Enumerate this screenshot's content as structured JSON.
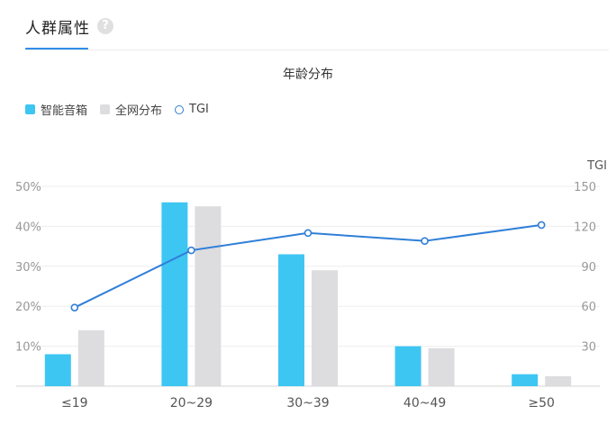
{
  "tab": {
    "title": "人群属性",
    "help_icon": "question-mark-icon",
    "help_glyph": "?"
  },
  "colors": {
    "smart_speaker": "#3ec6f3",
    "whole_network": "#dddcdf",
    "tgi": "#2f7fd8",
    "accent": "#2f8ee8"
  },
  "chart_data": {
    "type": "bar",
    "title": "年龄分布",
    "categories": [
      "≤19",
      "20~29",
      "30~39",
      "40~49",
      "≥50"
    ],
    "series": [
      {
        "name": "智能音箱",
        "kind": "bar",
        "axis": "left",
        "values": [
          8,
          46,
          33,
          10,
          3
        ]
      },
      {
        "name": "全网分布",
        "kind": "bar",
        "axis": "left",
        "values": [
          14,
          45,
          29,
          9.5,
          2.5
        ]
      },
      {
        "name": "TGI",
        "kind": "line",
        "axis": "right",
        "values": [
          59,
          102,
          115,
          109,
          121
        ]
      }
    ],
    "y_left": {
      "ticks": [
        "10%",
        "20%",
        "30%",
        "40%",
        "50%"
      ],
      "tick_values": [
        10,
        20,
        30,
        40,
        50
      ],
      "range": [
        0,
        50
      ]
    },
    "y_right": {
      "label": "TGI",
      "ticks": [
        "30",
        "60",
        "90",
        "120",
        "150"
      ],
      "tick_values": [
        30,
        60,
        90,
        120,
        150
      ],
      "range": [
        0,
        150
      ]
    },
    "legend": [
      "智能音箱",
      "全网分布",
      "TGI"
    ],
    "legend_position": "top-left",
    "grid": true
  }
}
